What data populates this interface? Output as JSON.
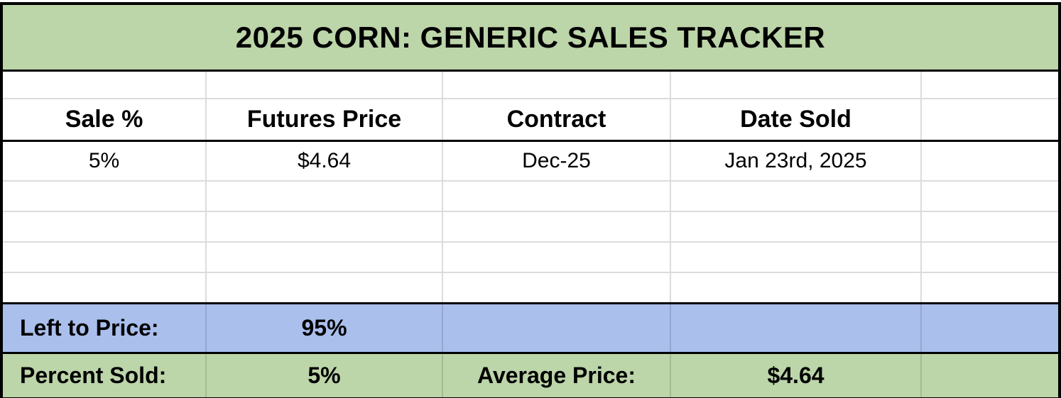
{
  "title": "2025 CORN: GENERIC SALES TRACKER",
  "columns": {
    "sale_pct": "Sale %",
    "futures_price": "Futures Price",
    "contract": "Contract",
    "date_sold": "Date Sold",
    "extra": ""
  },
  "sales": [
    {
      "sale_pct": "5%",
      "futures_price": "$4.64",
      "contract": "Dec-25",
      "date_sold": "Jan 23rd, 2025"
    }
  ],
  "summary": {
    "left_to_price_label": "Left to Price:",
    "left_to_price_value": "95%",
    "percent_sold_label": "Percent Sold:",
    "percent_sold_value": "5%",
    "average_price_label": "Average Price:",
    "average_price_value": "$4.64"
  },
  "colors": {
    "title_green": "#bcd5a9",
    "summary_green": "#bcd5a9",
    "summary_blue": "#aabfec",
    "grid_line": "#dcdcdc",
    "border_black": "#000000",
    "text": "#000000"
  }
}
